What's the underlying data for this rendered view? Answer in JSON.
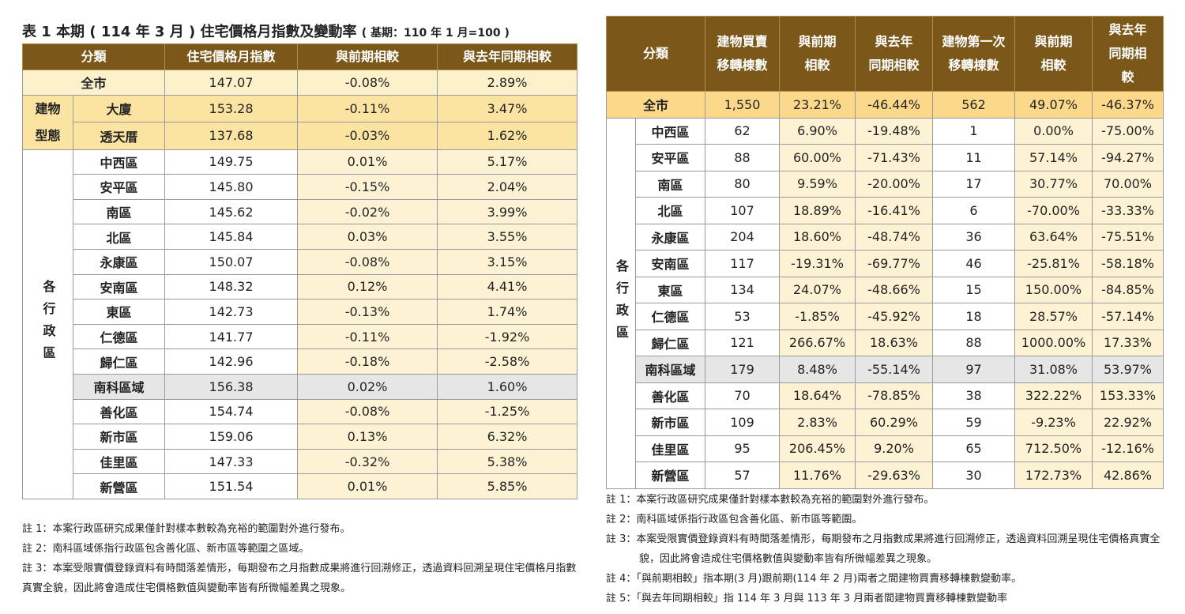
{
  "left_table": {
    "title": "表 1 本期 ( 114 年 3 月 ) 住宅價格月指數及變動率",
    "subtitle": "( 基期：110 年 1 月=100 )",
    "headers": [
      "分類",
      "住宅價格月指數",
      "與前期相較",
      "與去年同期相較"
    ],
    "groups": [
      {
        "label": null,
        "rows": [
          {
            "name": "全市",
            "values": [
              "147.07",
              "-0.08%",
              "2.89%"
            ]
          }
        ]
      },
      {
        "label": "建物型態",
        "rows": [
          {
            "name": "大廈",
            "values": [
              "153.28",
              "-0.11%",
              "3.47%"
            ]
          },
          {
            "name": "透天厝",
            "values": [
              "137.68",
              "-0.03%",
              "1.62%"
            ]
          }
        ]
      },
      {
        "label": "各行政區",
        "rows": [
          {
            "name": "中西區",
            "values": [
              "149.75",
              "0.01%",
              "5.17%"
            ]
          },
          {
            "name": "安平區",
            "values": [
              "145.80",
              "-0.15%",
              "2.04%"
            ]
          },
          {
            "name": "南區",
            "values": [
              "145.62",
              "-0.02%",
              "3.99%"
            ]
          },
          {
            "name": "北區",
            "values": [
              "145.84",
              "0.03%",
              "3.55%"
            ]
          },
          {
            "name": "永康區",
            "values": [
              "150.07",
              "-0.08%",
              "3.15%"
            ]
          },
          {
            "name": "安南區",
            "values": [
              "148.32",
              "0.12%",
              "4.41%"
            ]
          },
          {
            "name": "東區",
            "values": [
              "142.73",
              "-0.13%",
              "1.74%"
            ]
          },
          {
            "name": "仁德區",
            "values": [
              "141.77",
              "-0.11%",
              "-1.92%"
            ]
          },
          {
            "name": "歸仁區",
            "values": [
              "142.96",
              "-0.18%",
              "-2.58%"
            ]
          },
          {
            "name": "南科區域",
            "values": [
              "156.38",
              "0.02%",
              "1.60%"
            ],
            "highlight": true
          },
          {
            "name": "善化區",
            "values": [
              "154.74",
              "-0.08%",
              "-1.25%"
            ]
          },
          {
            "name": "新市區",
            "values": [
              "159.06",
              "0.13%",
              "6.32%"
            ]
          },
          {
            "name": "佳里區",
            "values": [
              "147.33",
              "-0.32%",
              "5.38%"
            ]
          },
          {
            "name": "新營區",
            "values": [
              "151.54",
              "0.01%",
              "5.85%"
            ]
          }
        ]
      }
    ],
    "notes": [
      "註 1：本案行政區研究成果僅針對樣本數較為充裕的範圍對外進行發布。",
      "註 2：南科區域係指行政區包含善化區、新市區等範圍之區域。",
      "註 3：本案受限實價登錄資料有時間落差情形，每期發布之月指數成果將進行回溯修正，透過資料回溯呈現住宅價格月指數真實全貌，因此將會造成住宅價格數值與變動率皆有所微幅差異之現象。"
    ]
  },
  "right_table": {
    "headers": [
      "分類",
      "建物買賣\n移轉棟數",
      "與前期\n相較",
      "與去年\n同期相較",
      "建物第一次\n移轉棟數",
      "與前期\n相較",
      "與去年\n同期相\n較"
    ],
    "groups": [
      {
        "label": null,
        "rows": [
          {
            "name": "全市",
            "values": [
              "1,550",
              "23.21%",
              "-46.44%",
              "562",
              "49.07%",
              "-46.37%"
            ]
          }
        ]
      },
      {
        "label": "各行政區",
        "rows": [
          {
            "name": "中西區",
            "values": [
              "62",
              "6.90%",
              "-19.48%",
              "1",
              "0.00%",
              "-75.00%"
            ]
          },
          {
            "name": "安平區",
            "values": [
              "88",
              "60.00%",
              "-71.43%",
              "11",
              "57.14%",
              "-94.27%"
            ]
          },
          {
            "name": "南區",
            "values": [
              "80",
              "9.59%",
              "-20.00%",
              "17",
              "30.77%",
              "70.00%"
            ]
          },
          {
            "name": "北區",
            "values": [
              "107",
              "18.89%",
              "-16.41%",
              "6",
              "-70.00%",
              "-33.33%"
            ]
          },
          {
            "name": "永康區",
            "values": [
              "204",
              "18.60%",
              "-48.74%",
              "36",
              "63.64%",
              "-75.51%"
            ]
          },
          {
            "name": "安南區",
            "values": [
              "117",
              "-19.31%",
              "-69.77%",
              "46",
              "-25.81%",
              "-58.18%"
            ]
          },
          {
            "name": "東區",
            "values": [
              "134",
              "24.07%",
              "-48.66%",
              "15",
              "150.00%",
              "-84.85%"
            ]
          },
          {
            "name": "仁德區",
            "values": [
              "53",
              "-1.85%",
              "-45.92%",
              "18",
              "28.57%",
              "-57.14%"
            ]
          },
          {
            "name": "歸仁區",
            "values": [
              "121",
              "266.67%",
              "18.63%",
              "88",
              "1000.00%",
              "17.33%"
            ]
          },
          {
            "name": "南科區域",
            "values": [
              "179",
              "8.48%",
              "-55.14%",
              "97",
              "31.08%",
              "53.97%"
            ],
            "highlight": true
          },
          {
            "name": "善化區",
            "values": [
              "70",
              "18.64%",
              "-78.85%",
              "38",
              "322.22%",
              "153.33%"
            ]
          },
          {
            "name": "新市區",
            "values": [
              "109",
              "2.83%",
              "60.29%",
              "59",
              "-9.23%",
              "22.92%"
            ]
          },
          {
            "name": "佳里區",
            "values": [
              "95",
              "206.45%",
              "9.20%",
              "65",
              "712.50%",
              "-12.16%"
            ]
          },
          {
            "name": "新營區",
            "values": [
              "57",
              "11.76%",
              "-29.63%",
              "30",
              "172.73%",
              "42.86%"
            ]
          }
        ]
      }
    ],
    "notes": [
      "註 1：本案行政區研究成果僅針對樣本數較為充裕的範圍對外進行發布。",
      "註 2：南科區域係指行政區包含善化區、新市區等範圍。",
      "註 3：本案受限實價登錄資料有時間落差情形，每期發布之月指數成果將進行回溯修正，透過資料回溯呈現住宅價格真實全貌，因此將會造成住宅價格數值與變動率皆有所微幅差異之現象。",
      "註 4：「與前期相較」指本期(3 月)跟前期(114 年 2 月)兩者之間建物買賣移轉棟數變動率。",
      "註 5：「與去年同期相較」指 114 年 3 月與 113 年 3 月兩者間建物買賣移轉棟數變動率"
    ]
  }
}
